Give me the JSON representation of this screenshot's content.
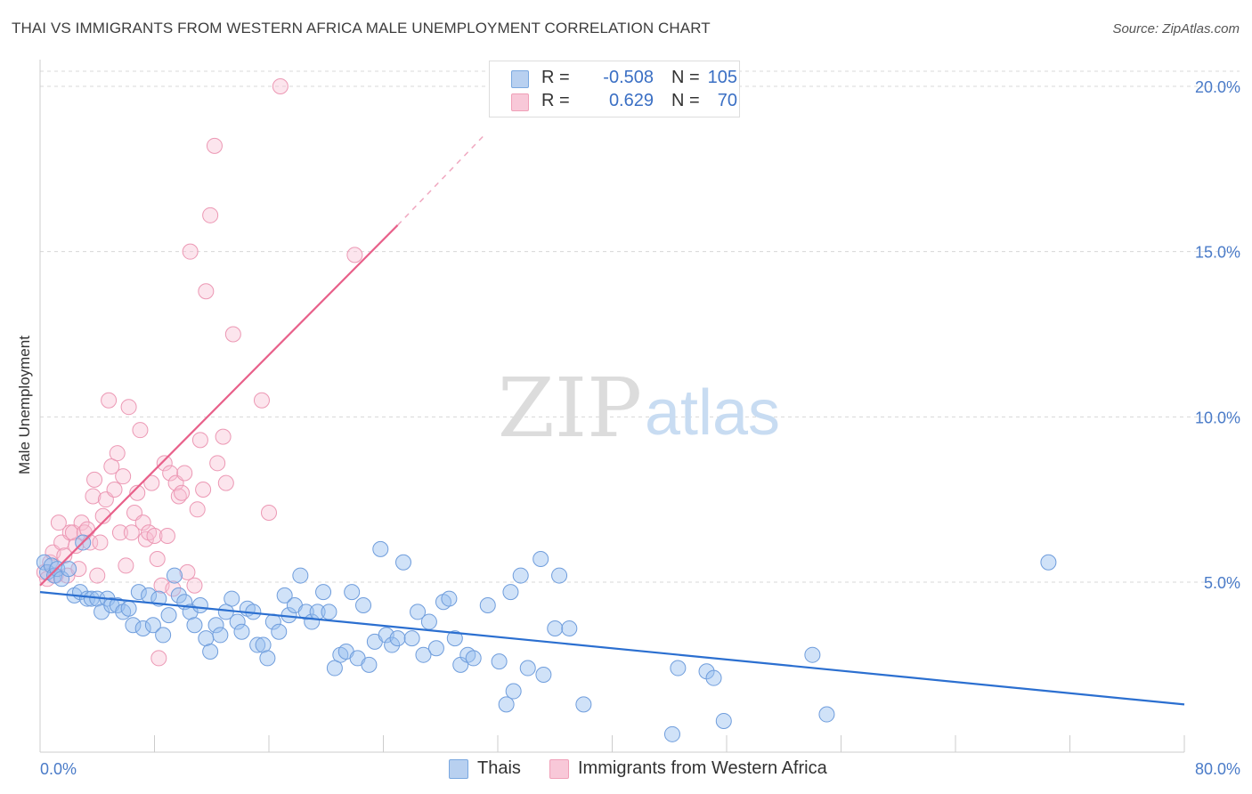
{
  "title": "THAI VS IMMIGRANTS FROM WESTERN AFRICA MALE UNEMPLOYMENT CORRELATION CHART",
  "source": "Source: ZipAtlas.com",
  "watermark": {
    "zip": "ZIP",
    "atlas": "atlas"
  },
  "colors": {
    "blue": "#7aa8e0",
    "blue_fill": "#b8d0f0",
    "pink": "#f0a0b8",
    "pink_fill": "#f8c8d8",
    "blue_line": "#2b6fd0",
    "pink_line": "#e8608a"
  },
  "legend": {
    "rows": [
      {
        "r_label": "R = ",
        "r_value": "-0.508",
        "n_label": "N = ",
        "n_value": "105"
      },
      {
        "r_label": "R = ",
        "r_value": "0.629",
        "n_label": "N = ",
        "n_value": "70"
      }
    ]
  },
  "bottom_legend": {
    "series1": "Thais",
    "series2": "Immigrants from Western Africa"
  },
  "chart_data": {
    "type": "scatter",
    "title": "THAI VS IMMIGRANTS FROM WESTERN AFRICA MALE UNEMPLOYMENT CORRELATION CHART",
    "xlabel": "",
    "ylabel": "Male Unemployment",
    "xlim": [
      0,
      80
    ],
    "ylim": [
      0,
      20.5
    ],
    "x_tick_labels": [
      "0.0%",
      "80.0%"
    ],
    "y_ticks": [
      5,
      10,
      15,
      20
    ],
    "y_tick_labels": [
      "5.0%",
      "10.0%",
      "15.0%",
      "20.0%"
    ],
    "grid": true,
    "series": [
      {
        "name": "Thais",
        "R": -0.508,
        "N": 105,
        "trend": {
          "x": [
            0,
            80
          ],
          "y": [
            4.7,
            1.3
          ]
        },
        "points": [
          [
            0.3,
            5.6
          ],
          [
            0.5,
            5.3
          ],
          [
            0.8,
            5.5
          ],
          [
            1.0,
            5.2
          ],
          [
            1.2,
            5.4
          ],
          [
            1.5,
            5.1
          ],
          [
            2.0,
            5.4
          ],
          [
            2.4,
            4.6
          ],
          [
            2.8,
            4.7
          ],
          [
            3.0,
            6.2
          ],
          [
            3.3,
            4.5
          ],
          [
            3.6,
            4.5
          ],
          [
            4.0,
            4.5
          ],
          [
            4.3,
            4.1
          ],
          [
            4.7,
            4.5
          ],
          [
            5.0,
            4.3
          ],
          [
            5.4,
            4.3
          ],
          [
            5.8,
            4.1
          ],
          [
            6.2,
            4.2
          ],
          [
            6.5,
            3.7
          ],
          [
            6.9,
            4.7
          ],
          [
            7.2,
            3.6
          ],
          [
            7.6,
            4.6
          ],
          [
            7.9,
            3.7
          ],
          [
            8.3,
            4.5
          ],
          [
            8.6,
            3.4
          ],
          [
            9.0,
            4.0
          ],
          [
            9.4,
            5.2
          ],
          [
            9.7,
            4.6
          ],
          [
            10.1,
            4.4
          ],
          [
            10.5,
            4.1
          ],
          [
            10.8,
            3.7
          ],
          [
            11.2,
            4.3
          ],
          [
            11.6,
            3.3
          ],
          [
            11.9,
            2.9
          ],
          [
            12.3,
            3.7
          ],
          [
            12.6,
            3.4
          ],
          [
            13.0,
            4.1
          ],
          [
            13.4,
            4.5
          ],
          [
            13.8,
            3.8
          ],
          [
            14.1,
            3.5
          ],
          [
            14.5,
            4.2
          ],
          [
            14.9,
            4.1
          ],
          [
            15.2,
            3.1
          ],
          [
            15.6,
            3.1
          ],
          [
            15.9,
            2.7
          ],
          [
            16.3,
            3.8
          ],
          [
            16.7,
            3.5
          ],
          [
            17.1,
            4.6
          ],
          [
            17.4,
            4.0
          ],
          [
            17.8,
            4.3
          ],
          [
            18.2,
            5.2
          ],
          [
            18.6,
            4.1
          ],
          [
            19.0,
            3.8
          ],
          [
            19.4,
            4.1
          ],
          [
            19.8,
            4.7
          ],
          [
            20.2,
            4.1
          ],
          [
            20.6,
            2.4
          ],
          [
            21.0,
            2.8
          ],
          [
            21.4,
            2.9
          ],
          [
            21.8,
            4.7
          ],
          [
            22.2,
            2.7
          ],
          [
            22.6,
            4.3
          ],
          [
            23.0,
            2.5
          ],
          [
            23.4,
            3.2
          ],
          [
            23.8,
            6.0
          ],
          [
            24.2,
            3.4
          ],
          [
            24.6,
            3.1
          ],
          [
            25.0,
            3.3
          ],
          [
            25.4,
            5.6
          ],
          [
            26.0,
            3.3
          ],
          [
            26.4,
            4.1
          ],
          [
            26.8,
            2.8
          ],
          [
            27.2,
            3.8
          ],
          [
            27.7,
            3.0
          ],
          [
            28.2,
            4.4
          ],
          [
            28.6,
            4.5
          ],
          [
            29.0,
            3.3
          ],
          [
            29.4,
            2.5
          ],
          [
            29.9,
            2.8
          ],
          [
            30.3,
            2.7
          ],
          [
            31.3,
            4.3
          ],
          [
            32.1,
            2.6
          ],
          [
            32.6,
            1.3
          ],
          [
            32.9,
            4.7
          ],
          [
            33.1,
            1.7
          ],
          [
            33.6,
            5.2
          ],
          [
            34.1,
            2.4
          ],
          [
            35.0,
            5.7
          ],
          [
            35.2,
            2.2
          ],
          [
            36.0,
            3.6
          ],
          [
            36.3,
            5.2
          ],
          [
            37.0,
            3.6
          ],
          [
            38.0,
            1.3
          ],
          [
            44.2,
            0.4
          ],
          [
            44.6,
            2.4
          ],
          [
            46.6,
            2.3
          ],
          [
            47.1,
            2.1
          ],
          [
            47.8,
            0.8
          ],
          [
            54.0,
            2.8
          ],
          [
            55.0,
            1.0
          ],
          [
            70.5,
            5.6
          ]
        ]
      },
      {
        "name": "Immigrants from Western Africa",
        "R": 0.629,
        "N": 70,
        "trend": {
          "x": [
            0,
            25
          ],
          "y": [
            4.9,
            15.8
          ]
        },
        "trend_dashed": {
          "x": [
            25,
            31
          ],
          "y": [
            15.8,
            18.5
          ]
        },
        "points": [
          [
            0.3,
            5.3
          ],
          [
            0.5,
            5.1
          ],
          [
            0.7,
            5.6
          ],
          [
            0.9,
            5.9
          ],
          [
            1.1,
            5.2
          ],
          [
            1.3,
            6.8
          ],
          [
            1.5,
            6.2
          ],
          [
            1.7,
            5.8
          ],
          [
            1.9,
            5.2
          ],
          [
            2.1,
            6.5
          ],
          [
            2.3,
            6.5
          ],
          [
            2.5,
            6.1
          ],
          [
            2.7,
            5.4
          ],
          [
            2.9,
            6.8
          ],
          [
            3.1,
            6.5
          ],
          [
            3.3,
            6.6
          ],
          [
            3.5,
            6.2
          ],
          [
            3.7,
            7.6
          ],
          [
            3.8,
            8.1
          ],
          [
            4.0,
            5.2
          ],
          [
            4.2,
            6.2
          ],
          [
            4.4,
            7.0
          ],
          [
            4.6,
            7.5
          ],
          [
            4.8,
            10.5
          ],
          [
            5.0,
            8.5
          ],
          [
            5.2,
            7.8
          ],
          [
            5.4,
            8.9
          ],
          [
            5.6,
            6.5
          ],
          [
            5.8,
            8.2
          ],
          [
            6.0,
            5.5
          ],
          [
            6.2,
            10.3
          ],
          [
            6.4,
            6.5
          ],
          [
            6.6,
            7.1
          ],
          [
            6.8,
            7.7
          ],
          [
            7.0,
            9.6
          ],
          [
            7.2,
            6.8
          ],
          [
            7.4,
            6.3
          ],
          [
            7.6,
            6.5
          ],
          [
            7.8,
            8.0
          ],
          [
            8.0,
            6.4
          ],
          [
            8.2,
            5.7
          ],
          [
            8.3,
            2.7
          ],
          [
            8.5,
            4.9
          ],
          [
            8.7,
            8.6
          ],
          [
            8.9,
            6.4
          ],
          [
            9.1,
            8.3
          ],
          [
            9.3,
            4.8
          ],
          [
            9.5,
            8.0
          ],
          [
            9.7,
            7.6
          ],
          [
            9.9,
            7.7
          ],
          [
            10.1,
            8.3
          ],
          [
            10.3,
            5.3
          ],
          [
            10.5,
            15.0
          ],
          [
            10.8,
            4.9
          ],
          [
            11.0,
            7.2
          ],
          [
            11.2,
            9.3
          ],
          [
            11.4,
            7.8
          ],
          [
            11.6,
            13.8
          ],
          [
            11.9,
            16.1
          ],
          [
            12.2,
            18.2
          ],
          [
            12.4,
            8.6
          ],
          [
            12.8,
            9.4
          ],
          [
            13.0,
            8.0
          ],
          [
            13.5,
            12.5
          ],
          [
            15.5,
            10.5
          ],
          [
            16.0,
            7.1
          ],
          [
            16.8,
            20.0
          ],
          [
            22.0,
            14.9
          ]
        ]
      }
    ]
  }
}
